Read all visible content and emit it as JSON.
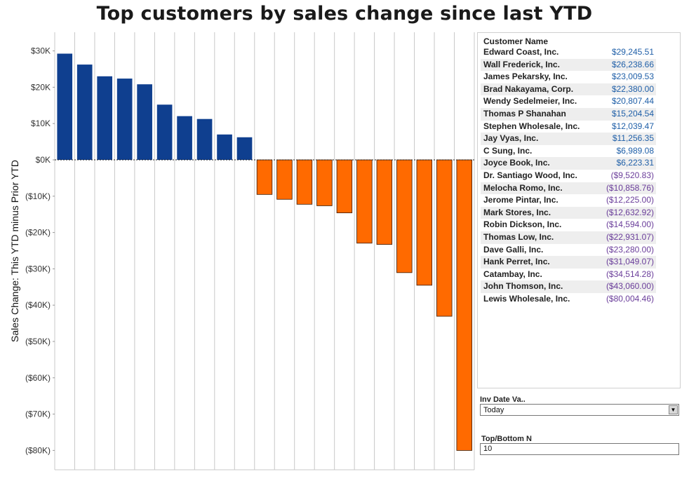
{
  "chart_data": {
    "type": "bar",
    "title": "Top customers by sales change since last YTD",
    "ylabel": "Sales Change: This YTD minus Prior YTD",
    "xlabel": "",
    "ylim": [
      -85000,
      31000
    ],
    "yticks": [
      30000,
      20000,
      10000,
      0,
      -10000,
      -20000,
      -30000,
      -40000,
      -50000,
      -60000,
      -70000,
      -80000
    ],
    "ytick_labels": [
      "$30K",
      "$20K",
      "$10K",
      "$0K",
      "($10K)",
      "($20K)",
      "($30K)",
      "($40K)",
      "($50K)",
      "($60K)",
      "($70K)",
      "($80K)"
    ],
    "grid": "vertical",
    "positive_color": "#0f3f8f",
    "negative_color": "#ff6a00",
    "categories": [
      "Edward Coast, Inc.",
      "Wall Frederick, Inc.",
      "James Pekarsky, Inc.",
      "Brad Nakayama, Corp.",
      "Wendy Sedelmeier, Inc.",
      "Thomas P Shanahan",
      "Stephen Wholesale, Inc.",
      "Jay Vyas, Inc.",
      "C Sung, Inc.",
      "Joyce Book, Inc.",
      "Dr. Santiago Wood, Inc.",
      "Melocha Romo, Inc.",
      "Jerome Pintar, Inc.",
      "Mark Stores, Inc.",
      "Robin Dickson, Inc.",
      "Thomas Low, Inc.",
      "Dave Galli, Inc.",
      "Hank Perret, Inc.",
      "Catambay, Inc.",
      "John Thomson, Inc.",
      "Lewis Wholesale, Inc."
    ],
    "values": [
      29245.51,
      26238.66,
      23009.53,
      22380.0,
      20807.44,
      15204.54,
      12039.47,
      11256.35,
      6989.08,
      6223.31,
      -9520.83,
      -10858.76,
      -12225.0,
      -12632.92,
      -14594.0,
      -22931.07,
      -23280.0,
      -31049.07,
      -34514.28,
      -43060.0,
      -80004.46
    ]
  },
  "table": {
    "header": "Customer Name",
    "rows": [
      {
        "name": "Edward Coast, Inc.",
        "value": "$29,245.51"
      },
      {
        "name": "Wall Frederick, Inc.",
        "value": "$26,238.66"
      },
      {
        "name": "James Pekarsky, Inc.",
        "value": "$23,009.53"
      },
      {
        "name": "Brad Nakayama, Corp.",
        "value": "$22,380.00"
      },
      {
        "name": "Wendy Sedelmeier, Inc.",
        "value": "$20,807.44"
      },
      {
        "name": "Thomas P Shanahan",
        "value": "$15,204.54"
      },
      {
        "name": "Stephen Wholesale, Inc.",
        "value": "$12,039.47"
      },
      {
        "name": "Jay Vyas, Inc.",
        "value": "$11,256.35"
      },
      {
        "name": "C Sung, Inc.",
        "value": "$6,989.08"
      },
      {
        "name": "Joyce Book, Inc.",
        "value": "$6,223.31"
      },
      {
        "name": "Dr. Santiago Wood, Inc.",
        "value": "($9,520.83)"
      },
      {
        "name": "Melocha Romo, Inc.",
        "value": "($10,858.76)"
      },
      {
        "name": "Jerome Pintar, Inc.",
        "value": "($12,225.00)"
      },
      {
        "name": "Mark Stores, Inc.",
        "value": "($12,632.92)"
      },
      {
        "name": "Robin Dickson, Inc.",
        "value": "($14,594.00)"
      },
      {
        "name": "Thomas Low, Inc.",
        "value": "($22,931.07)"
      },
      {
        "name": "Dave Galli, Inc.",
        "value": "($23,280.00)"
      },
      {
        "name": "Hank Perret, Inc.",
        "value": "($31,049.07)"
      },
      {
        "name": "Catambay, Inc.",
        "value": "($34,514.28)"
      },
      {
        "name": "John Thomson, Inc.",
        "value": "($43,060.00)"
      },
      {
        "name": "Lewis Wholesale, Inc.",
        "value": "($80,004.46)"
      }
    ]
  },
  "filters": {
    "date_label": "Inv Date Va..",
    "date_value": "Today",
    "topn_label": "Top/Bottom N",
    "topn_value": "10"
  }
}
